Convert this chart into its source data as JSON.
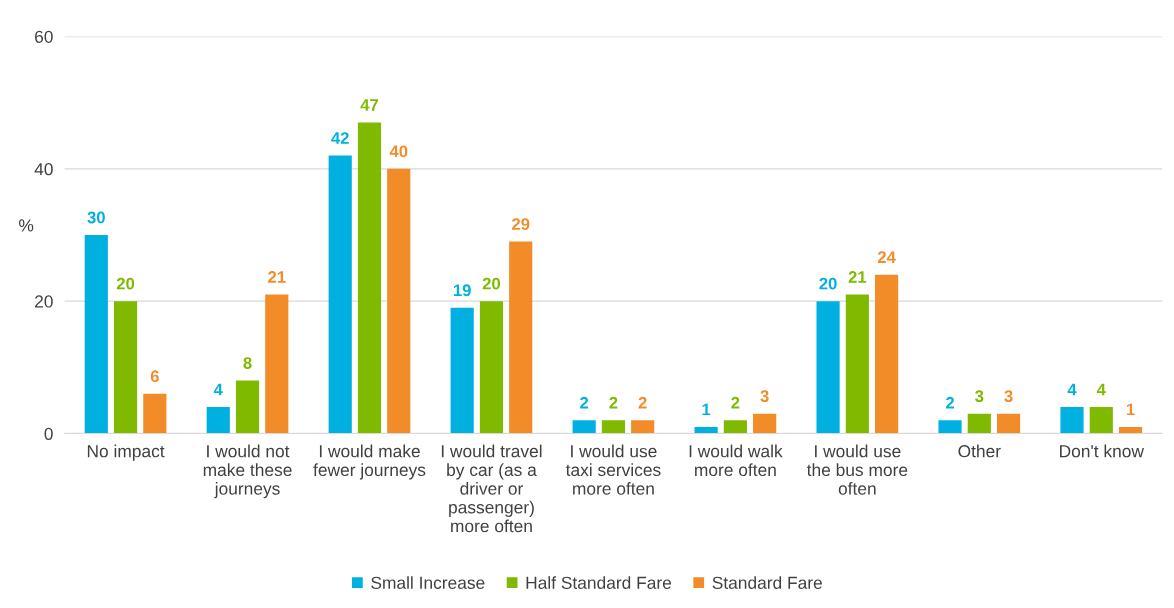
{
  "chart_data": {
    "type": "bar",
    "ylabel": "%",
    "categories": [
      "No impact",
      "I would not make these journeys",
      "I would make fewer journeys",
      "I would travel by car (as a driver or passenger) more often",
      "I would use taxi services more often",
      "I would walk more often",
      "I would use the bus more often",
      "Other",
      "Don't know"
    ],
    "series": [
      {
        "name": "Small Increase",
        "color": "#00b0e0",
        "values": [
          30,
          4,
          42,
          19,
          2,
          1,
          20,
          2,
          4
        ]
      },
      {
        "name": "Half Standard Fare",
        "color": "#7fba00",
        "values": [
          20,
          8,
          47,
          20,
          2,
          2,
          21,
          3,
          4
        ]
      },
      {
        "name": "Standard Fare",
        "color": "#f28c28",
        "values": [
          6,
          21,
          40,
          29,
          2,
          3,
          24,
          3,
          1
        ]
      }
    ],
    "ylim": [
      0,
      60
    ],
    "yticks": [
      0,
      20,
      40,
      60
    ],
    "grid": "y",
    "legend": "bottom",
    "data_labels": true
  }
}
